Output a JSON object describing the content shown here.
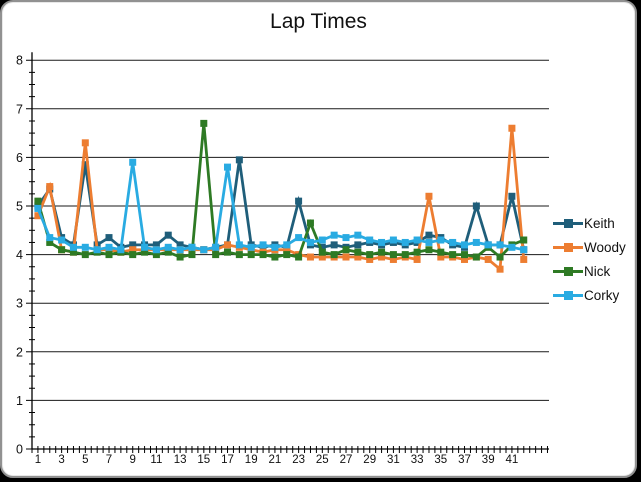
{
  "window": {
    "title": "Lap Times"
  },
  "colors": {
    "background": "#ffffff",
    "frame_border": "#919191",
    "gridline": "#1a1a1a",
    "axis": "#000000",
    "text": "#111111"
  },
  "chart_data": {
    "type": "line",
    "title": "Lap Times",
    "xlabel": "",
    "ylabel": "",
    "ylim": [
      0,
      8
    ],
    "y_major_ticks": [
      "0",
      "1",
      "2",
      "3",
      "4",
      "5",
      "6",
      "7",
      "8"
    ],
    "x_tick_labels": [
      "1",
      "3",
      "5",
      "7",
      "9",
      "11",
      "13",
      "15",
      "17",
      "19",
      "21",
      "23",
      "25",
      "27",
      "29",
      "31",
      "33",
      "35",
      "37",
      "39",
      "41"
    ],
    "x_label_interval": 2,
    "grid": "horizontal-major",
    "legend_position": "right",
    "x": [
      1,
      2,
      3,
      4,
      5,
      6,
      7,
      8,
      9,
      10,
      11,
      12,
      13,
      14,
      15,
      16,
      17,
      18,
      19,
      20,
      21,
      22,
      23,
      24,
      25,
      26,
      27,
      28,
      29,
      30,
      31,
      32,
      33,
      34,
      35,
      36,
      37,
      38,
      39,
      40,
      41,
      42
    ],
    "series": [
      {
        "name": "Keith",
        "color": "#1F5E7A",
        "values": [
          5.0,
          5.35,
          4.35,
          4.2,
          5.85,
          4.2,
          4.35,
          4.15,
          4.2,
          4.2,
          4.2,
          4.4,
          4.2,
          4.15,
          4.1,
          4.15,
          4.2,
          5.95,
          4.2,
          4.15,
          4.2,
          4.15,
          5.1,
          4.2,
          4.15,
          4.2,
          4.15,
          4.2,
          4.25,
          4.2,
          4.25,
          4.2,
          4.25,
          4.4,
          4.35,
          4.2,
          4.15,
          5.0,
          4.2,
          4.2,
          5.2,
          4.1
        ]
      },
      {
        "name": "Woody",
        "color": "#ED7D31",
        "values": [
          4.8,
          5.4,
          4.1,
          4.05,
          6.3,
          4.1,
          4.1,
          4.05,
          4.1,
          4.1,
          4.1,
          4.1,
          4.1,
          4.1,
          4.1,
          4.1,
          4.2,
          4.15,
          4.1,
          4.05,
          4.1,
          4.1,
          4.0,
          3.95,
          3.95,
          3.95,
          3.95,
          3.95,
          3.9,
          3.95,
          3.9,
          3.95,
          3.9,
          5.2,
          3.95,
          3.95,
          3.9,
          3.95,
          3.9,
          3.7,
          6.6,
          3.9
        ]
      },
      {
        "name": "Nick",
        "color": "#2E7A24",
        "values": [
          5.1,
          4.25,
          4.1,
          4.05,
          4.0,
          4.05,
          4.0,
          4.05,
          4.0,
          4.05,
          4.0,
          4.05,
          3.95,
          4.0,
          6.7,
          4.0,
          4.05,
          4.0,
          4.0,
          4.0,
          3.95,
          4.0,
          3.95,
          4.65,
          4.05,
          4.0,
          4.1,
          4.05,
          4.0,
          4.05,
          4.0,
          4.0,
          4.05,
          4.1,
          4.05,
          4.0,
          4.0,
          3.95,
          4.15,
          3.95,
          4.2,
          4.3
        ]
      },
      {
        "name": "Corky",
        "color": "#29ABE2",
        "values": [
          4.95,
          4.35,
          4.3,
          4.15,
          4.15,
          4.1,
          4.15,
          4.1,
          5.9,
          4.15,
          4.1,
          4.15,
          4.1,
          4.15,
          4.1,
          4.15,
          5.8,
          4.2,
          4.15,
          4.2,
          4.15,
          4.2,
          4.35,
          4.25,
          4.3,
          4.4,
          4.35,
          4.4,
          4.3,
          4.25,
          4.3,
          4.25,
          4.3,
          4.25,
          4.3,
          4.25,
          4.2,
          4.25,
          4.2,
          4.2,
          4.15,
          4.1
        ]
      }
    ]
  }
}
